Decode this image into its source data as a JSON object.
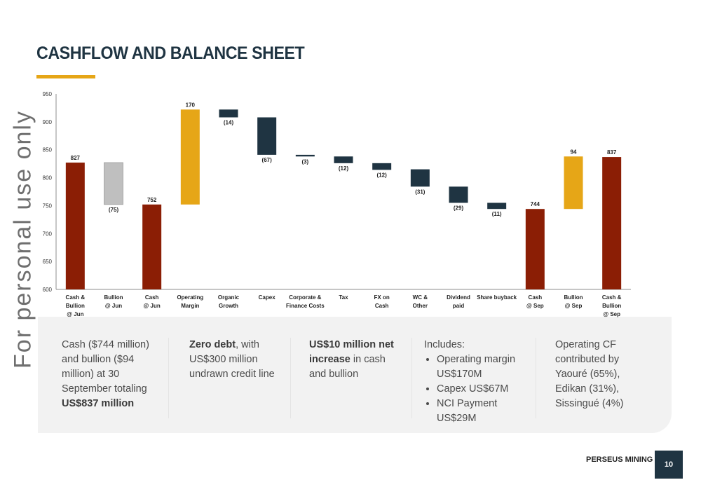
{
  "slide": {
    "title": "CASHFLOW AND BALANCE SHEET",
    "watermark": "For personal use only",
    "footer_brand": "PERSEUS MINING",
    "page_number": "10",
    "colors": {
      "title": "#1f3442",
      "accent": "#e6a617",
      "total": "#8b1e05",
      "negative": "#1f3442",
      "positive": "#e6a617",
      "bullion_jun": "#bfbfbf"
    }
  },
  "chart_data": {
    "type": "bar",
    "subtype": "waterfall",
    "title": "",
    "xlabel": "",
    "ylabel": "",
    "ylim": [
      600,
      950
    ],
    "yticks": [
      600,
      650,
      700,
      750,
      800,
      850,
      900,
      950
    ],
    "grid": false,
    "categories": [
      [
        "Cash &",
        "Bullion",
        "@ Jun"
      ],
      [
        "Bullion",
        "@ Jun"
      ],
      [
        "Cash",
        "@ Jun"
      ],
      [
        "Operating",
        "Margin"
      ],
      [
        "Organic",
        "Growth"
      ],
      [
        "Capex"
      ],
      [
        "Corporate &",
        "Finance Costs"
      ],
      [
        "Tax"
      ],
      [
        "FX on",
        "Cash"
      ],
      [
        "WC &",
        "Other"
      ],
      [
        "Dividend",
        "paid"
      ],
      [
        "Share buyback"
      ],
      [
        "Cash",
        "@ Sep"
      ],
      [
        "Bullion",
        "@ Sep"
      ],
      [
        "Cash &",
        "Bullion",
        "@ Sep"
      ]
    ],
    "bars": [
      {
        "kind": "total",
        "start": 600,
        "end": 827,
        "label": "827",
        "label_pos": "top"
      },
      {
        "kind": "bullion_jun",
        "start": 827,
        "end": 752,
        "label": "(75)",
        "label_pos": "bottom"
      },
      {
        "kind": "total",
        "start": 600,
        "end": 752,
        "label": "752",
        "label_pos": "top"
      },
      {
        "kind": "positive",
        "start": 752,
        "end": 922,
        "label": "170",
        "label_pos": "top"
      },
      {
        "kind": "negative",
        "start": 922,
        "end": 908,
        "label": "(14)",
        "label_pos": "bottom"
      },
      {
        "kind": "negative",
        "start": 908,
        "end": 841,
        "label": "(67)",
        "label_pos": "bottom"
      },
      {
        "kind": "negative",
        "start": 841,
        "end": 838,
        "label": "(3)",
        "label_pos": "bottom"
      },
      {
        "kind": "negative",
        "start": 838,
        "end": 826,
        "label": "(12)",
        "label_pos": "bottom"
      },
      {
        "kind": "negative",
        "start": 826,
        "end": 814,
        "label": "(12)",
        "label_pos": "bottom"
      },
      {
        "kind": "negative",
        "start": 815,
        "end": 784,
        "label": "(31)",
        "label_pos": "bottom"
      },
      {
        "kind": "negative",
        "start": 784,
        "end": 755,
        "label": "(29)",
        "label_pos": "bottom"
      },
      {
        "kind": "negative",
        "start": 755,
        "end": 744,
        "label": "(11)",
        "label_pos": "bottom"
      },
      {
        "kind": "total",
        "start": 600,
        "end": 744,
        "label": "744",
        "label_pos": "top"
      },
      {
        "kind": "positive",
        "start": 744,
        "end": 838,
        "label": "94",
        "label_pos": "top"
      },
      {
        "kind": "total",
        "start": 600,
        "end": 837,
        "label": "837",
        "label_pos": "top"
      }
    ]
  },
  "notes": {
    "col1": {
      "pre": "Cash ($744 million) and bullion ($94 million) at 30 September totaling ",
      "bold": "US$837 million"
    },
    "col2": {
      "bold": "Zero debt",
      "post": ", with US$300 million undrawn credit line"
    },
    "col3": {
      "bold": "US$10 million net increase",
      "post": " in cash and bullion"
    },
    "col4": {
      "heading": "Includes:",
      "items": [
        "Operating margin US$170M",
        "Capex US$67M",
        "NCI Payment US$29M"
      ]
    },
    "col5": {
      "text": "Operating CF contributed by Yaouré (65%), Edikan (31%), Sissingué (4%)"
    }
  }
}
